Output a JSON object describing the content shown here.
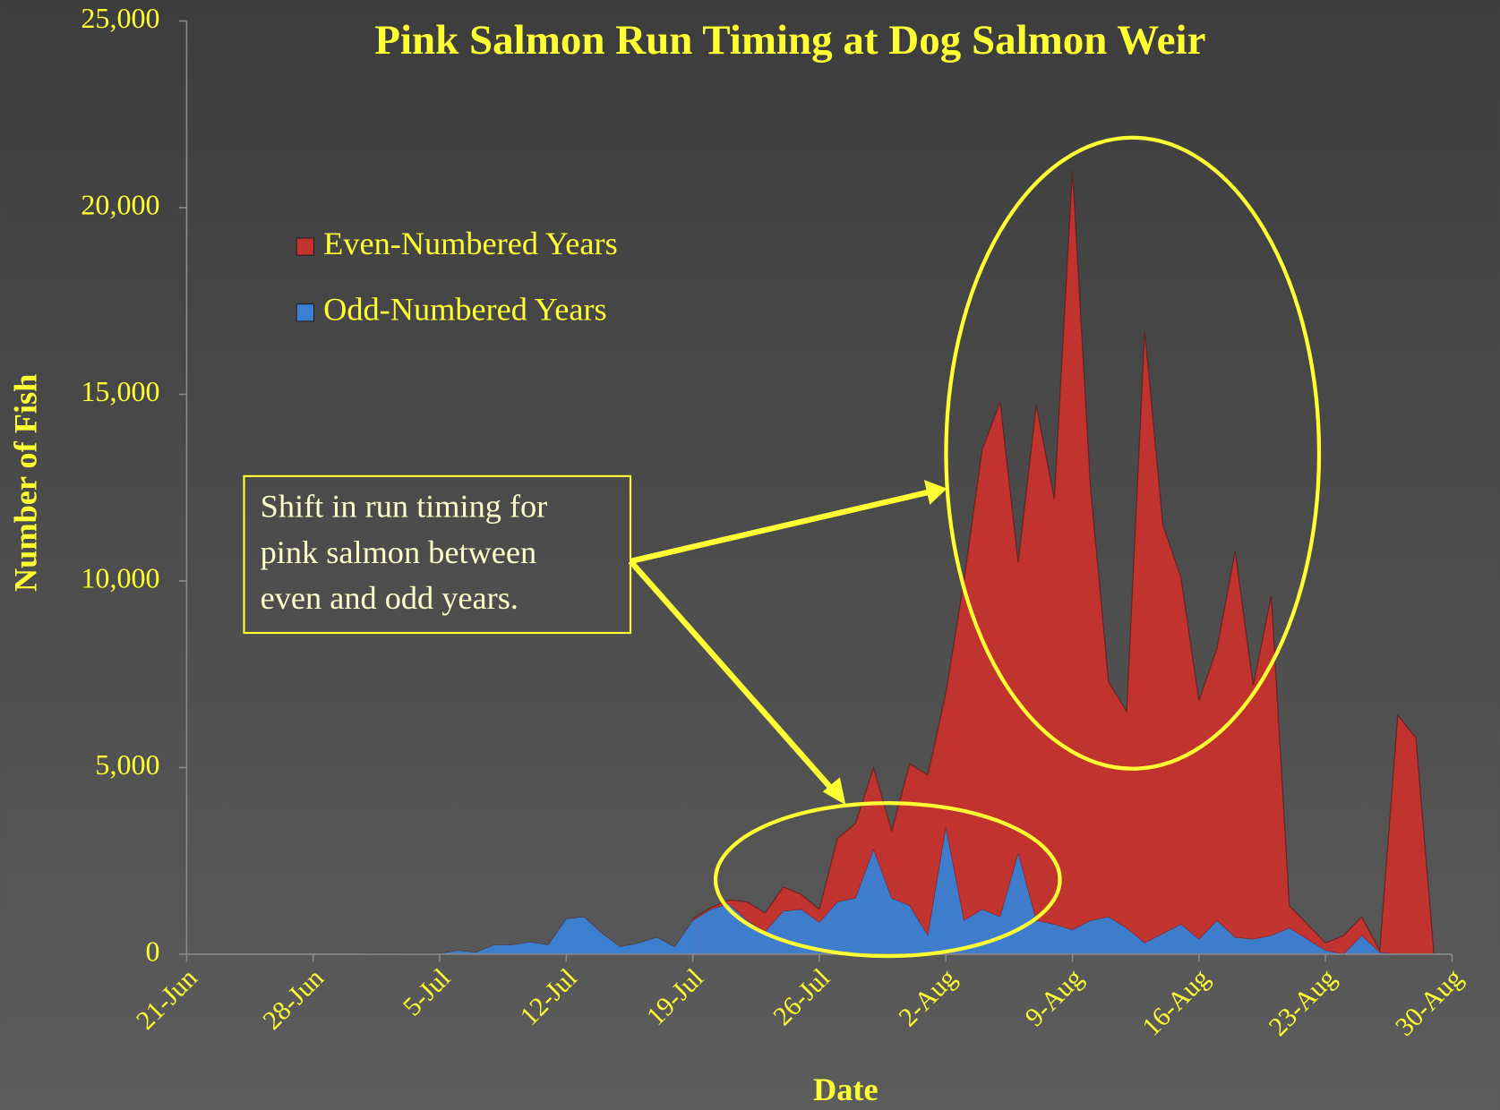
{
  "chart_data": {
    "type": "area",
    "title": "Pink Salmon Run Timing at Dog Salmon Weir",
    "x_label": "Date",
    "y_label": "Number of Fish",
    "categories": [
      "21-Jun",
      null,
      null,
      null,
      null,
      null,
      null,
      "28-Jun",
      null,
      null,
      null,
      null,
      null,
      null,
      "5-Jul",
      null,
      null,
      null,
      null,
      null,
      null,
      "12-Jul",
      null,
      null,
      null,
      null,
      null,
      null,
      "19-Jul",
      null,
      null,
      null,
      null,
      null,
      null,
      "26-Jul",
      null,
      null,
      null,
      null,
      null,
      null,
      "2-Aug",
      null,
      null,
      null,
      null,
      null,
      null,
      "9-Aug",
      null,
      null,
      null,
      null,
      null,
      null,
      "16-Aug",
      null,
      null,
      null,
      null,
      null,
      null,
      "23-Aug",
      null,
      null,
      null,
      null,
      null,
      null,
      "30-Aug"
    ],
    "series": [
      {
        "name": "Even-Numbered Years",
        "color": "#c4332e",
        "values": [
          null,
          null,
          null,
          null,
          null,
          null,
          null,
          null,
          null,
          null,
          null,
          null,
          null,
          null,
          null,
          null,
          null,
          null,
          null,
          null,
          null,
          null,
          null,
          null,
          null,
          null,
          null,
          null,
          950,
          1250,
          1450,
          1400,
          1100,
          1800,
          1600,
          1200,
          3100,
          3500,
          5000,
          3300,
          5100,
          4800,
          7000,
          10000,
          13500,
          14800,
          10500,
          14700,
          12200,
          21000,
          12500,
          7300,
          6500,
          16700,
          11500,
          10100,
          6800,
          8200,
          10800,
          7200,
          9600,
          1300,
          800,
          300,
          500,
          1000,
          100,
          6400,
          5800,
          0,
          null
        ]
      },
      {
        "name": "Odd-Numbered Years",
        "color": "#3b80d2",
        "values": [
          0,
          0,
          0,
          0,
          0,
          0,
          0,
          0,
          10,
          10,
          20,
          30,
          20,
          20,
          20,
          100,
          50,
          250,
          250,
          330,
          250,
          950,
          1000,
          550,
          200,
          300,
          450,
          200,
          900,
          1200,
          1350,
          900,
          600,
          1150,
          1200,
          850,
          1400,
          1500,
          2800,
          1500,
          1300,
          500,
          3400,
          900,
          1200,
          1000,
          2700,
          900,
          800,
          650,
          900,
          1000,
          700,
          300,
          550,
          800,
          400,
          900,
          450,
          400,
          500,
          700,
          400,
          100,
          0,
          500,
          50,
          0,
          0,
          0,
          0
        ]
      }
    ],
    "ylim": [
      0,
      25000
    ],
    "yticks": [
      0,
      {
        "value": 5000,
        "label": "5,000"
      },
      {
        "value": 10000,
        "label": "10,000"
      },
      {
        "value": 15000,
        "label": "15,000"
      },
      {
        "value": 20000,
        "label": "20,000"
      },
      {
        "value": 25000,
        "label": "25,000"
      }
    ],
    "annotation": [
      "Shift in run timing for",
      "pink salmon between",
      "even and odd years."
    ],
    "legend": "upper left",
    "grid": false
  }
}
